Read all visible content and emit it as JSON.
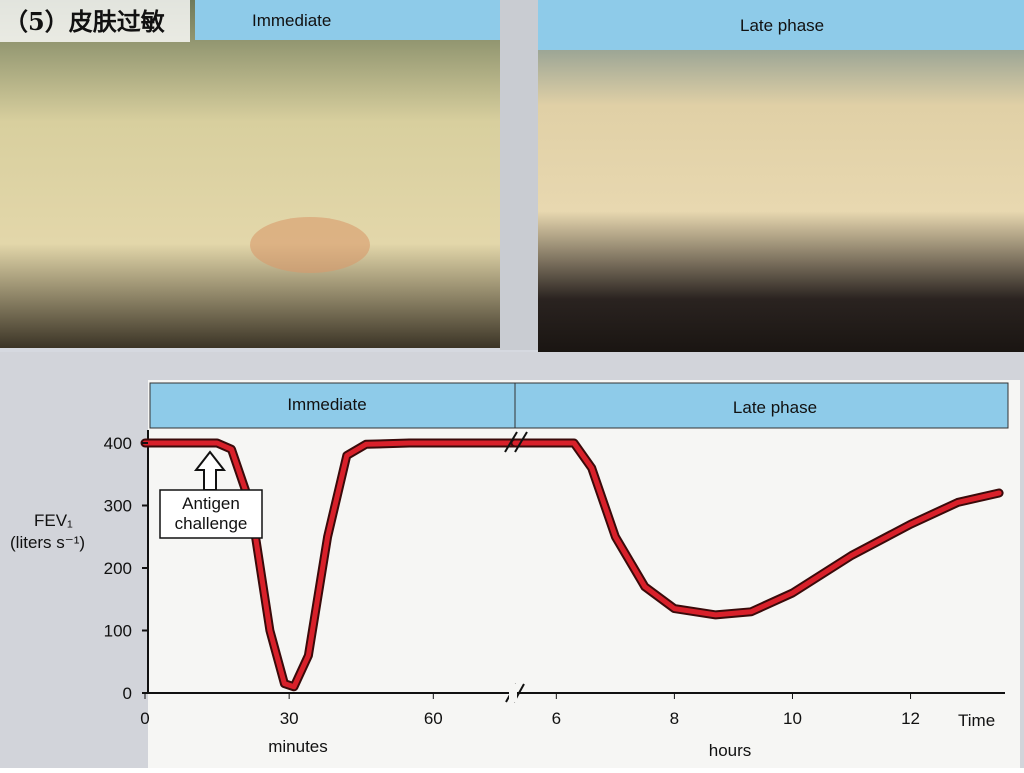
{
  "header": {
    "title": "（5）皮肤过敏"
  },
  "photos": [
    {
      "label": "Immediate"
    },
    {
      "label": "Late phase"
    }
  ],
  "chart_data": [
    {
      "type": "line",
      "band_label": "Immediate",
      "y_label": [
        "FEV₁",
        "(liters s⁻¹)"
      ],
      "annotation": [
        "Antigen",
        "challenge"
      ],
      "x_label": "minutes",
      "x": [
        0,
        15,
        18,
        22,
        26,
        29,
        31,
        34,
        38,
        42,
        46,
        55,
        77
      ],
      "series": [
        {
          "name": "FEV1",
          "color": "#d8202a",
          "values": [
            400,
            400,
            390,
            300,
            100,
            15,
            10,
            60,
            250,
            380,
            398,
            400,
            400
          ]
        }
      ],
      "xlim": [
        0,
        77
      ],
      "xticks": [
        0,
        30,
        60
      ],
      "ylim": [
        0,
        400
      ],
      "yticks": [
        0,
        100,
        200,
        300,
        400
      ]
    },
    {
      "type": "line",
      "band_label": "Late phase",
      "x_label": "hours",
      "x_end_label": "Time",
      "x": [
        5.3,
        6.3,
        6.6,
        7,
        7.5,
        8,
        8.7,
        9.3,
        10,
        11,
        12,
        12.8,
        13.5
      ],
      "series": [
        {
          "name": "FEV1",
          "color": "#d8202a",
          "values": [
            400,
            400,
            360,
            250,
            170,
            135,
            125,
            130,
            160,
            220,
            270,
            305,
            320
          ]
        }
      ],
      "xlim": [
        5.3,
        13.6
      ],
      "xticks": [
        6,
        8,
        10,
        12
      ],
      "ylim": [
        0,
        400
      ]
    }
  ]
}
